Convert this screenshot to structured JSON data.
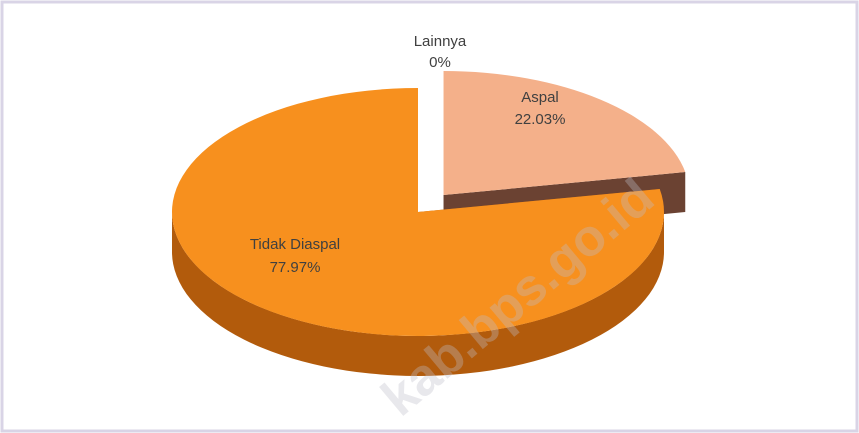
{
  "chart_data": {
    "type": "pie",
    "categories": [
      "Lainnya",
      "Aspal",
      "Tidak Diaspal"
    ],
    "values": [
      0,
      22.03,
      77.97
    ],
    "value_labels": [
      "0%",
      "22.03%",
      "77.97%"
    ],
    "colors": [
      "#7f7f7f",
      "#f4b08a",
      "#f7901e"
    ],
    "side_colors": [
      "#555555",
      "#6b4232",
      "#b25b0c"
    ],
    "exploded": [
      false,
      true,
      false
    ]
  },
  "watermark": "kab.bps.go.id"
}
